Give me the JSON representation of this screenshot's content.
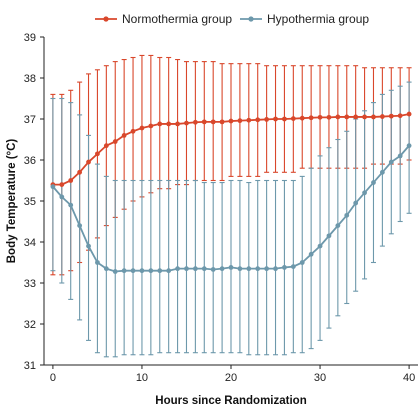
{
  "chart_data": {
    "type": "line",
    "xlabel": "Hours since Randomization",
    "ylabel": "Body Temperature (°C)",
    "xlim": [
      -1,
      41
    ],
    "ylim": [
      31,
      39
    ],
    "xticks": [
      0,
      10,
      20,
      30,
      40
    ],
    "yticks": [
      31,
      32,
      33,
      34,
      35,
      36,
      37,
      38,
      39
    ],
    "grid": false,
    "legend_position": "top-center",
    "x": [
      0,
      1,
      2,
      3,
      4,
      5,
      6,
      7,
      8,
      9,
      10,
      11,
      12,
      13,
      14,
      15,
      16,
      17,
      18,
      19,
      20,
      21,
      22,
      23,
      24,
      25,
      26,
      27,
      28,
      29,
      30,
      31,
      32,
      33,
      34,
      35,
      36,
      37,
      38,
      39,
      40
    ],
    "series": [
      {
        "name": "Normothermia group",
        "color": "#d9472b",
        "values": [
          35.4,
          35.4,
          35.5,
          35.7,
          35.95,
          36.15,
          36.35,
          36.45,
          36.6,
          36.7,
          36.78,
          36.83,
          36.88,
          36.88,
          36.88,
          36.9,
          36.92,
          36.93,
          36.93,
          36.93,
          36.95,
          36.96,
          36.97,
          36.98,
          36.99,
          37.0,
          37.0,
          37.01,
          37.02,
          37.03,
          37.04,
          37.04,
          37.05,
          37.05,
          37.05,
          37.05,
          37.05,
          37.06,
          37.07,
          37.08,
          37.12
        ],
        "lower": [
          33.2,
          33.2,
          33.3,
          33.5,
          33.8,
          34.1,
          34.4,
          34.6,
          34.8,
          35.0,
          35.1,
          35.2,
          35.3,
          35.3,
          35.4,
          35.4,
          35.5,
          35.5,
          35.5,
          35.5,
          35.6,
          35.6,
          35.6,
          35.6,
          35.7,
          35.7,
          35.7,
          35.7,
          35.8,
          35.8,
          35.8,
          35.8,
          35.8,
          35.8,
          35.8,
          35.8,
          35.9,
          35.9,
          35.9,
          35.9,
          36.0
        ],
        "upper": [
          37.6,
          37.6,
          37.7,
          37.9,
          38.1,
          38.2,
          38.3,
          38.4,
          38.45,
          38.5,
          38.55,
          38.55,
          38.5,
          38.5,
          38.45,
          38.4,
          38.4,
          38.4,
          38.4,
          38.35,
          38.35,
          38.35,
          38.35,
          38.35,
          38.3,
          38.3,
          38.3,
          38.3,
          38.3,
          38.3,
          38.3,
          38.3,
          38.3,
          38.3,
          38.3,
          38.25,
          38.25,
          38.25,
          38.25,
          38.25,
          38.25
        ]
      },
      {
        "name": "Hypothermia group",
        "color": "#6d98ab",
        "values": [
          35.35,
          35.1,
          34.9,
          34.4,
          33.9,
          33.5,
          33.35,
          33.28,
          33.3,
          33.3,
          33.3,
          33.3,
          33.3,
          33.3,
          33.35,
          33.35,
          33.35,
          33.35,
          33.33,
          33.35,
          33.38,
          33.35,
          33.35,
          33.35,
          33.35,
          33.35,
          33.38,
          33.4,
          33.5,
          33.7,
          33.9,
          34.15,
          34.4,
          34.65,
          34.95,
          35.2,
          35.45,
          35.7,
          35.95,
          36.1,
          36.35
        ],
        "lower": [
          33.3,
          33.0,
          32.6,
          32.1,
          31.6,
          31.3,
          31.2,
          31.2,
          31.25,
          31.25,
          31.25,
          31.25,
          31.3,
          31.3,
          31.3,
          31.3,
          31.3,
          31.3,
          31.3,
          31.3,
          31.3,
          31.3,
          31.25,
          31.25,
          31.25,
          31.25,
          31.25,
          31.3,
          31.3,
          31.4,
          31.6,
          31.9,
          32.2,
          32.5,
          32.8,
          33.1,
          33.5,
          33.9,
          34.2,
          34.5,
          34.7
        ],
        "upper": [
          37.5,
          37.5,
          37.4,
          37.1,
          36.6,
          35.9,
          35.6,
          35.5,
          35.5,
          35.5,
          35.5,
          35.5,
          35.5,
          35.5,
          35.5,
          35.5,
          35.5,
          35.45,
          35.45,
          35.45,
          35.5,
          35.5,
          35.45,
          35.5,
          35.5,
          35.5,
          35.5,
          35.5,
          35.6,
          35.8,
          36.1,
          36.3,
          36.5,
          36.7,
          37.0,
          37.2,
          37.4,
          37.6,
          37.7,
          37.8,
          37.9
        ]
      }
    ]
  }
}
